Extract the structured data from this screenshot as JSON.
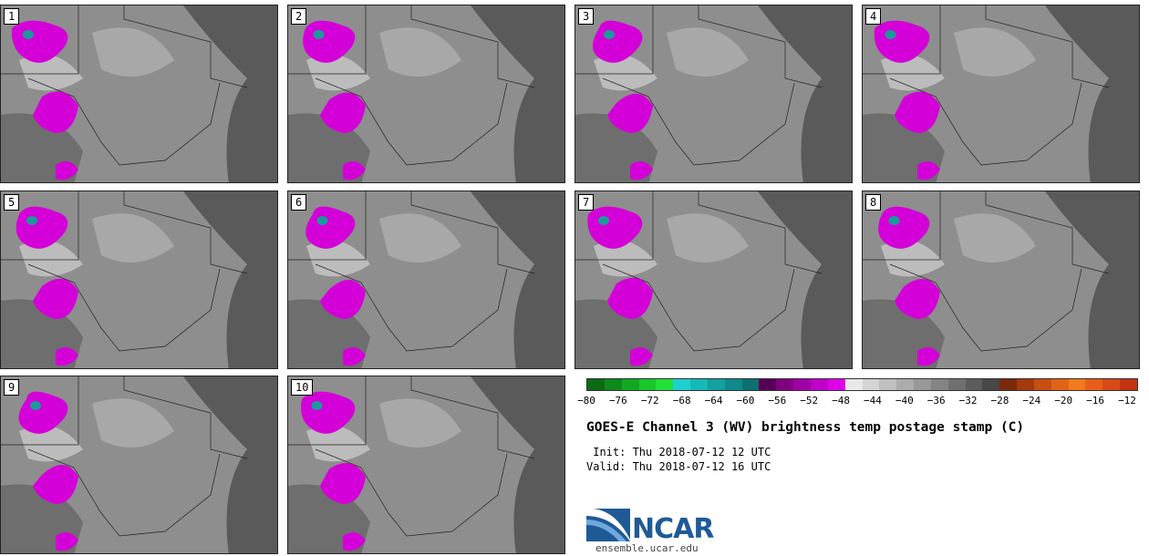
{
  "panels": [
    {
      "label": "1"
    },
    {
      "label": "2"
    },
    {
      "label": "3"
    },
    {
      "label": "4"
    },
    {
      "label": "5"
    },
    {
      "label": "6"
    },
    {
      "label": "7"
    },
    {
      "label": "8"
    },
    {
      "label": "9"
    },
    {
      "label": "10"
    }
  ],
  "colorbar": {
    "ticks": [
      "−80",
      "−76",
      "−72",
      "−68",
      "−64",
      "−60",
      "−56",
      "−52",
      "−48",
      "−44",
      "−40",
      "−36",
      "−32",
      "−28",
      "−24",
      "−20",
      "−16",
      "−12"
    ],
    "colors": [
      "#0a6b14",
      "#0e8a1c",
      "#13a822",
      "#19c72a",
      "#22e035",
      "#1ed0d0",
      "#17b8b8",
      "#12a0a0",
      "#0e8a8a",
      "#0a7070",
      "#560056",
      "#800080",
      "#a000a8",
      "#c000c8",
      "#e000e8",
      "#e8e8e8",
      "#d4d4d4",
      "#c0c0c0",
      "#acacac",
      "#989898",
      "#848484",
      "#707070",
      "#5c5c5c",
      "#484848",
      "#7a2a0a",
      "#a43a0e",
      "#c84e12",
      "#e06418",
      "#f07a1c",
      "#e85e18",
      "#d84a14",
      "#c43410"
    ]
  },
  "title": "GOES-E Channel 3 (WV) brightness temp postage stamp (C)",
  "init": " Init: Thu 2018-07-12 12 UTC",
  "valid": "Valid: Thu 2018-07-12 16 UTC",
  "logo_text": "NCAR",
  "url": "ensemble.ucar.edu"
}
